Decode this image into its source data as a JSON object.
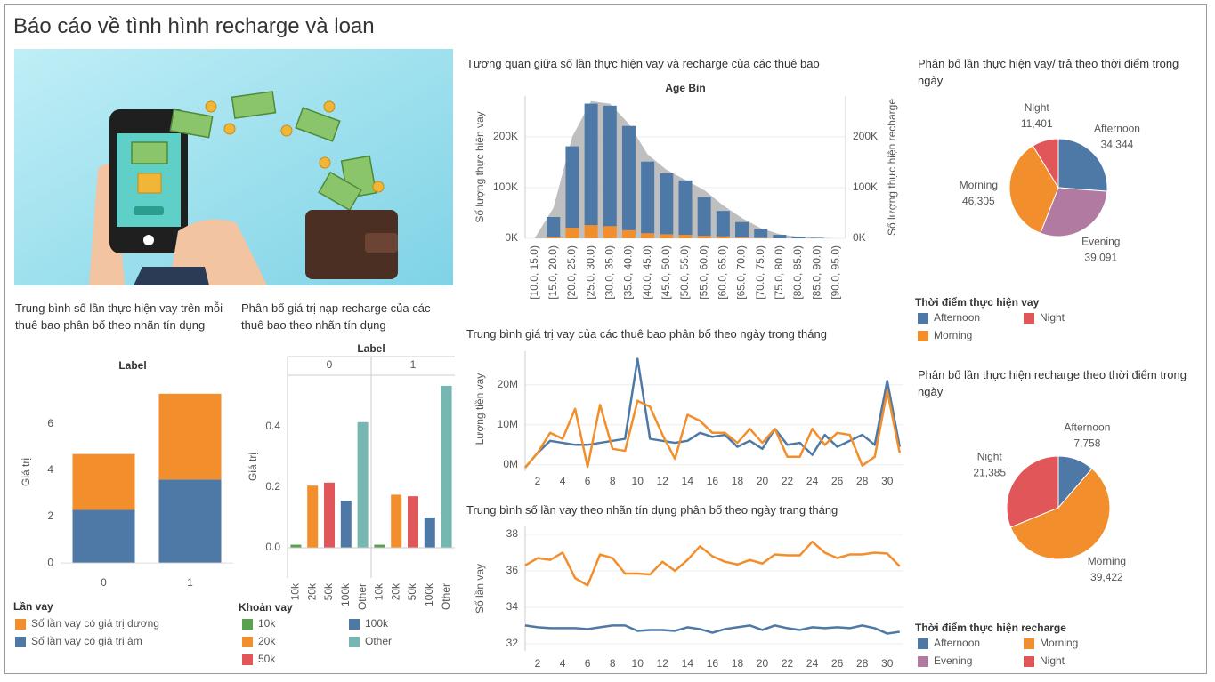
{
  "title": "Báo cáo về tình hình recharge và loan",
  "chart_data": [
    {
      "type": "stacked_bar",
      "title": "Trung bình số lần thực hiện vay trên mỗi thuê bao phân bố theo nhãn tín dụng",
      "header": "Label",
      "ylabel": "Giá trị",
      "categories": [
        "0",
        "1"
      ],
      "series": [
        {
          "name": "Số lần vay có giá trị âm",
          "color": "#4e79a7",
          "values": [
            2.3,
            3.6
          ]
        },
        {
          "name": "Số lần vay có giá trị dương",
          "color": "#f28e2b",
          "values": [
            2.4,
            3.7
          ]
        }
      ],
      "ylim": [
        -0.3,
        8.1
      ],
      "yticks": [
        0,
        2,
        4,
        6
      ],
      "legend_title": "Lần vay"
    },
    {
      "type": "facet_bar",
      "title": "Phân bố giá trị nạp recharge của các thuê bao theo nhãn tín dụng",
      "header": "Label",
      "ylabel": "Giá trị",
      "categories": [
        "10k",
        "20k",
        "50k",
        "100k",
        "Other"
      ],
      "colors": [
        "#59a14f",
        "#f28e2b",
        "#e15759",
        "#4e79a7",
        "#76b7b2"
      ],
      "panels": [
        {
          "name": "0",
          "values": [
            0.01,
            0.205,
            0.215,
            0.155,
            0.415
          ]
        },
        {
          "name": "1",
          "values": [
            0.01,
            0.175,
            0.17,
            0.1,
            0.535
          ]
        }
      ],
      "ylim": [
        -0.1,
        0.57
      ],
      "yticks": [
        {
          "value": 0,
          "label": "0.0"
        },
        0.2,
        0.4
      ],
      "legend_title": "Khoản vay"
    },
    {
      "type": "combo",
      "title": "Tương quan giữa số lần thực hiện vay và recharge của các thuê bao",
      "header": "Age Bin",
      "ylabel": "Số lượng thực hiện vay",
      "y2label": "Số lượng thực hiện recharge",
      "categories": [
        "[10.0, 15.0)",
        "[15.0, 20.0)",
        "[20.0, 25.0)",
        "[25.0, 30.0)",
        "[30.0, 35.0)",
        "[35.0, 40.0)",
        "[40.0, 45.0)",
        "[45.0, 50.0)",
        "[50.0, 55.0)",
        "[55.0, 60.0)",
        "[60.0, 65.0)",
        "[65.0, 70.0)",
        "[70.0, 75.0)",
        "[75.0, 80.0)",
        "[80.0, 85.0)",
        "[85.0, 90.0)",
        "[90.0, 95.0)"
      ],
      "series": [
        {
          "color": "#f28e2b",
          "values": [
            0,
            3000,
            21000,
            26000,
            24000,
            16000,
            10000,
            8000,
            7000,
            5000,
            4000,
            2000,
            1000,
            0,
            0,
            0,
            0
          ]
        },
        {
          "color": "#4e79a7",
          "values": [
            0,
            39000,
            160000,
            239000,
            237000,
            205000,
            141000,
            120000,
            107000,
            76000,
            50000,
            30000,
            17000,
            7000,
            3000,
            1000,
            0
          ]
        },
        {
          "color": "#b4b4b4",
          "axis": "y2",
          "values": [
            0,
            60000,
            200000,
            270000,
            265000,
            225000,
            165000,
            135000,
            115000,
            95000,
            65000,
            40000,
            20000,
            8000,
            3000,
            1000,
            0
          ]
        }
      ],
      "ylim": [
        0,
        280000
      ],
      "yticks": [
        {
          "value": 0,
          "label": "0K"
        },
        {
          "value": 100000,
          "label": "100K"
        },
        {
          "value": 200000,
          "label": "200K"
        }
      ],
      "y2lim": [
        0,
        280000
      ],
      "y2ticks": [
        {
          "value": 0,
          "label": "0K"
        },
        {
          "value": 100000,
          "label": "100K"
        },
        {
          "value": 200000,
          "label": "200K"
        }
      ],
      "grid": true
    },
    {
      "type": "line",
      "title": "Trung bình giá trị vay của các thuê bao phân bố theo ngày trong tháng",
      "ylabel": "Lượng tiền vay",
      "x": [
        1,
        2,
        3,
        4,
        5,
        6,
        7,
        8,
        9,
        10,
        11,
        12,
        13,
        14,
        15,
        16,
        17,
        18,
        19,
        20,
        21,
        22,
        23,
        24,
        25,
        26,
        27,
        28,
        29,
        30,
        31
      ],
      "series": [
        {
          "color": "#4e79a7",
          "values": [
            -700000,
            3000000,
            6000000,
            5500000,
            5000000,
            5000000,
            5500000,
            6000000,
            6500000,
            26500000,
            6500000,
            6000000,
            5500000,
            6000000,
            8000000,
            7000000,
            7500000,
            4500000,
            6000000,
            4000000,
            9000000,
            5000000,
            5500000,
            2500000,
            7500000,
            4500000,
            6000000,
            7500000,
            5000000,
            21000000,
            4500000
          ]
        },
        {
          "color": "#f28e2b",
          "values": [
            -700000,
            3000000,
            8000000,
            6500000,
            14000000,
            -500000,
            15000000,
            4000000,
            3500000,
            16000000,
            14500000,
            7500000,
            1500000,
            12500000,
            11000000,
            8000000,
            8000000,
            5500000,
            9000000,
            5500000,
            9000000,
            2000000,
            2000000,
            9000000,
            5000000,
            8000000,
            7500000,
            -200000,
            2000000,
            18500000,
            3000000
          ]
        }
      ],
      "xlim": [
        1,
        31.3
      ],
      "xticks": [
        2,
        4,
        6,
        8,
        10,
        12,
        14,
        16,
        18,
        20,
        22,
        24,
        26,
        28,
        30
      ],
      "ylim": [
        -1600000,
        28400000
      ],
      "yticks": [
        {
          "value": 0,
          "label": "0M"
        },
        {
          "value": 10000000,
          "label": "10M"
        },
        {
          "value": 20000000,
          "label": "20M"
        }
      ],
      "grid": true
    },
    {
      "type": "line",
      "title": "Trung bình số lần vay theo nhãn tín dụng phân bố theo ngày trang tháng",
      "ylabel": "Số lần vay",
      "x": [
        1,
        2,
        3,
        4,
        5,
        6,
        7,
        8,
        9,
        10,
        11,
        12,
        13,
        14,
        15,
        16,
        17,
        18,
        19,
        20,
        21,
        22,
        23,
        24,
        25,
        26,
        27,
        28,
        29,
        30,
        31
      ],
      "series": [
        {
          "color": "#f28e2b",
          "values": [
            36.3,
            36.7,
            36.6,
            37.0,
            35.6,
            35.2,
            36.9,
            36.7,
            35.85,
            35.85,
            35.8,
            36.5,
            36.0,
            36.6,
            37.35,
            36.8,
            36.5,
            36.35,
            36.6,
            36.4,
            36.9,
            36.85,
            36.85,
            37.6,
            37.0,
            36.7,
            36.9,
            36.9,
            37.0,
            36.95,
            36.25
          ]
        },
        {
          "color": "#4e79a7",
          "values": [
            33.0,
            32.9,
            32.85,
            32.85,
            32.85,
            32.8,
            32.9,
            33.0,
            33.0,
            32.7,
            32.75,
            32.75,
            32.7,
            32.9,
            32.8,
            32.6,
            32.8,
            32.9,
            33.0,
            32.75,
            33.0,
            32.85,
            32.75,
            32.9,
            32.85,
            32.9,
            32.85,
            33.0,
            32.85,
            32.55,
            32.65
          ]
        }
      ],
      "xlim": [
        1,
        31.3
      ],
      "xticks": [
        2,
        4,
        6,
        8,
        10,
        12,
        14,
        16,
        18,
        20,
        22,
        24,
        26,
        28,
        30
      ],
      "ylim": [
        31.6,
        38.44
      ],
      "yticks": [
        32,
        34,
        36,
        38
      ],
      "grid": true
    },
    {
      "type": "pie",
      "title": "Phân bố lần thực hiện vay/ trả theo thời điểm trong ngày",
      "categories": [
        "Afternoon",
        "Evening",
        "Morning",
        "Night"
      ],
      "values": [
        34344,
        39091,
        46305,
        11401
      ],
      "value_labels": [
        "34,344",
        "39,091",
        "46,305",
        "11,401"
      ],
      "colors": [
        "#4e79a7",
        "#b07aa1",
        "#f28e2b",
        "#e15759"
      ],
      "legend_title": "Thời điểm thực hiện vay",
      "legend": [
        {
          "name": "Afternoon",
          "color": "#4e79a7"
        },
        {
          "name": "Night",
          "color": "#e15759"
        },
        {
          "name": "Morning",
          "color": "#f28e2b"
        }
      ]
    },
    {
      "type": "pie",
      "title": "Phân bố lần thực hiện recharge theo thời điểm trong ngày",
      "categories": [
        "Afternoon",
        "Morning",
        "Night"
      ],
      "values": [
        7758,
        39422,
        21385
      ],
      "value_labels": [
        "7,758",
        "39,422",
        "21,385"
      ],
      "colors": [
        "#4e79a7",
        "#f28e2b",
        "#e15759"
      ],
      "legend_title": "Thời điểm thực hiện recharge",
      "legend": [
        {
          "name": "Afternoon",
          "color": "#4e79a7"
        },
        {
          "name": "Morning",
          "color": "#f28e2b"
        },
        {
          "name": "Evening",
          "color": "#b07aa1"
        },
        {
          "name": "Night",
          "color": "#e15759"
        }
      ]
    }
  ]
}
